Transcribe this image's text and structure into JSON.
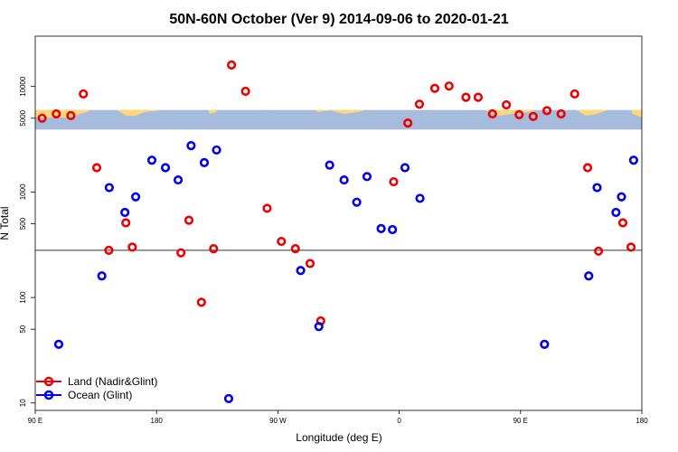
{
  "chart_data": {
    "type": "scatter",
    "title": "50N-60N October (Ver 9)   2014-09-06 to 2020-01-21",
    "xlabel": "Longitude (deg E)",
    "ylabel": "N Total",
    "x_ticks": [
      {
        "value": 90,
        "label": "90 E"
      },
      {
        "value": 180,
        "label": "180"
      },
      {
        "value": 270,
        "label": "90 W"
      },
      {
        "value": 360,
        "label": "0"
      },
      {
        "value": 450,
        "label": "90 E"
      },
      {
        "value": 540,
        "label": "180"
      }
    ],
    "y_ticks": [
      10,
      50,
      100,
      500,
      1000,
      5000,
      10000
    ],
    "xlim": [
      90,
      540
    ],
    "ylim": [
      8.5,
      30000
    ],
    "y_scale": "log",
    "reference_line_y": 280,
    "map_band": {
      "y_top": 6000,
      "y_bottom": 3900,
      "land_color": "#FFD77A",
      "ocean_color": "#A7BCDD"
    },
    "legend_position": "bottom-left",
    "series": [
      {
        "name": "Land (Nadir&Glint)",
        "color": "#EE0000",
        "points": [
          [
            95.1,
            5000
          ],
          [
            105.6,
            5500
          ],
          [
            116.4,
            5300
          ],
          [
            125.7,
            8500
          ],
          [
            135.6,
            1700
          ],
          [
            144.6,
            280
          ],
          [
            157.2,
            510
          ],
          [
            162.0,
            300
          ],
          [
            198.1,
            265
          ],
          [
            204.0,
            540
          ],
          [
            213.3,
            90
          ],
          [
            222.3,
            290
          ],
          [
            246.0,
            9000
          ],
          [
            235.6,
            16000
          ],
          [
            262.0,
            700
          ],
          [
            272.6,
            340
          ],
          [
            283.0,
            290
          ],
          [
            293.9,
            210
          ],
          [
            301.8,
            60
          ],
          [
            355.9,
            1250
          ],
          [
            366.4,
            4500
          ],
          [
            375.0,
            6800
          ],
          [
            386.4,
            9600
          ],
          [
            397.0,
            10100
          ],
          [
            409.5,
            7900
          ],
          [
            418.6,
            7900
          ],
          [
            429.2,
            5500
          ],
          [
            439.5,
            6700
          ],
          [
            449.0,
            5400
          ],
          [
            459.4,
            5200
          ],
          [
            469.6,
            5900
          ],
          [
            480.1,
            5500
          ],
          [
            490.2,
            8500
          ],
          [
            499.8,
            1700
          ],
          [
            507.9,
            275
          ],
          [
            525.9,
            510
          ],
          [
            532.0,
            300
          ]
        ]
      },
      {
        "name": "Ocean (Glint)",
        "color": "#0000EE",
        "points": [
          [
            107.4,
            36
          ],
          [
            139.4,
            160
          ],
          [
            144.9,
            1100
          ],
          [
            156.5,
            640
          ],
          [
            164.5,
            900
          ],
          [
            176.5,
            2000
          ],
          [
            186.6,
            1700
          ],
          [
            196.0,
            1300
          ],
          [
            205.6,
            2750
          ],
          [
            215.4,
            1900
          ],
          [
            224.5,
            2500
          ],
          [
            233.5,
            11
          ],
          [
            286.9,
            180
          ],
          [
            300.4,
            53
          ],
          [
            308.4,
            1800
          ],
          [
            319.1,
            1300
          ],
          [
            328.5,
            800
          ],
          [
            336.1,
            1400
          ],
          [
            346.6,
            450
          ],
          [
            355.0,
            440
          ],
          [
            364.3,
            1700
          ],
          [
            375.4,
            870
          ],
          [
            467.8,
            36
          ],
          [
            500.6,
            160
          ],
          [
            506.8,
            1100
          ],
          [
            520.8,
            640
          ],
          [
            524.9,
            900
          ],
          [
            533.9,
            2000
          ]
        ]
      }
    ]
  }
}
